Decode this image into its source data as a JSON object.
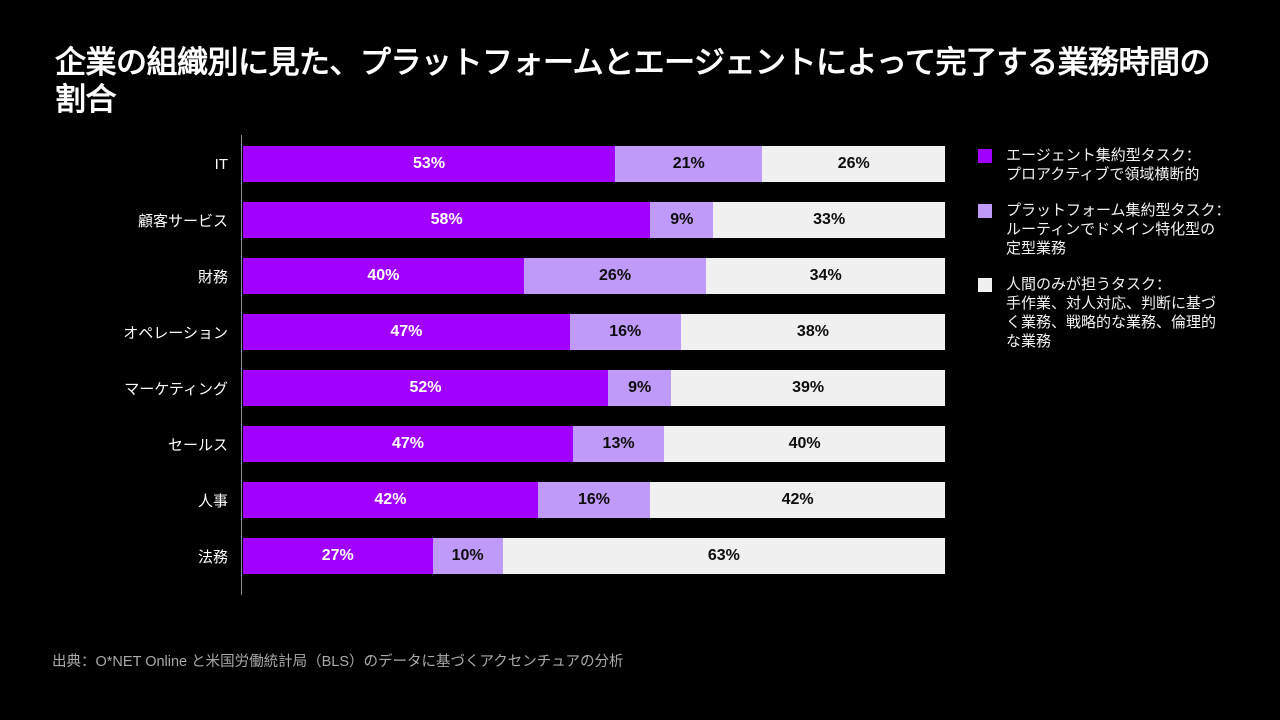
{
  "title": "企業の組織別に見た、プラットフォームとエージェントによって完了する業務時間の割合",
  "source": "出典：O*NET Online と米国労働統計局（BLS）のデータに基づくアクセンチュアの分析",
  "colors": {
    "background": "#000000",
    "agent": "#A100FF",
    "platform": "#C09AF8",
    "human": "#F0F0F0",
    "axis": "#8F8F8F",
    "value_on_agent": "#FFFFFF",
    "value_on_light": "#0D0D0D",
    "source_text": "#A9A9A9"
  },
  "chart_data": {
    "type": "bar",
    "orientation": "horizontal",
    "stacked": true,
    "xlim": [
      0,
      100
    ],
    "value_suffix": "%",
    "grid": false,
    "legend_position": "right",
    "categories": [
      "IT",
      "顧客サービス",
      "財務",
      "オペレーション",
      "マーケティング",
      "セールス",
      "人事",
      "法務"
    ],
    "series": [
      {
        "key": "agent",
        "name": "エージェント集約型タスク：プロアクティブで領域横断的",
        "color": "#A100FF",
        "values": [
          53,
          58,
          40,
          47,
          52,
          47,
          42,
          27
        ]
      },
      {
        "key": "platform",
        "name": "プラットフォーム集約型タスク：ルーティンでドメイン特化型の定型業務",
        "color": "#C09AF8",
        "values": [
          21,
          9,
          26,
          16,
          9,
          13,
          16,
          10
        ]
      },
      {
        "key": "human-only",
        "name": "人間のみが担うタスク：手作業、対人対応、判断に基づく業務、戦略的な業務、倫理的な業務",
        "color": "#F0F0F0",
        "values": [
          26,
          33,
          34,
          38,
          39,
          40,
          42,
          63
        ]
      }
    ],
    "legend": [
      {
        "key": "agent",
        "color": "#A100FF",
        "label_lines": [
          "エージェント集約型タスク：",
          "プロアクティブで領域横断的"
        ]
      },
      {
        "key": "platform",
        "color": "#C09AF8",
        "label_lines": [
          "プラットフォーム集約型タスク：",
          "ルーティンでドメイン特化型の",
          "定型業務"
        ]
      },
      {
        "key": "human-only",
        "color": "#F0F0F0",
        "label_lines": [
          "人間のみが担うタスク：",
          "手作業、対人対応、判断に基づ",
          "く業務、戦略的な業務、倫理的",
          "な業務"
        ]
      }
    ]
  }
}
